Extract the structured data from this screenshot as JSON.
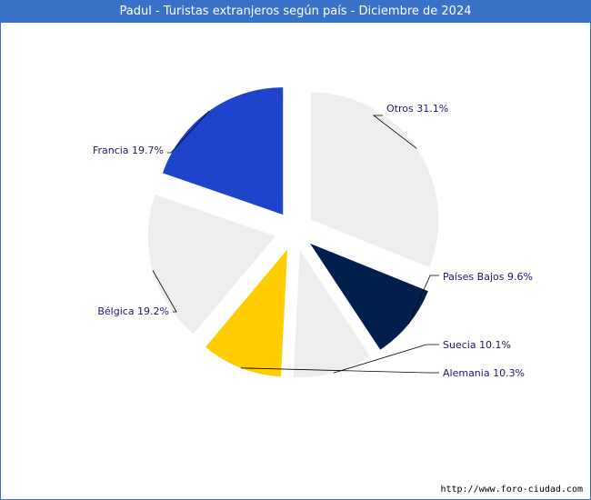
{
  "chart_data": {
    "type": "pie",
    "title": "Padul - Turistas extranjeros según país - Diciembre de 2024",
    "slices": [
      {
        "name": "Otros",
        "label": "Otros 31.1%",
        "value": 31.1,
        "color": "#eeeeee"
      },
      {
        "name": "Países Bajos",
        "label": "Países Bajos 9.6%",
        "value": 9.6,
        "color": "#001f4d"
      },
      {
        "name": "Suecia",
        "label": "Suecia 10.1%",
        "value": 10.1,
        "color": "#eeeeee"
      },
      {
        "name": "Alemania",
        "label": "Alemania 10.3%",
        "value": 10.3,
        "color": "#ffcc00"
      },
      {
        "name": "Bélgica",
        "label": "Bélgica 19.2%",
        "value": 19.2,
        "color": "#eeeeee"
      },
      {
        "name": "Francia",
        "label": "Francia 19.7%",
        "value": 19.7,
        "color": "#1f44cc"
      }
    ],
    "exploded": true
  },
  "footer": {
    "source": "http://www.foro-ciudad.com"
  }
}
